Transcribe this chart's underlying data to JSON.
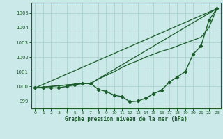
{
  "background_color": "#cce9e9",
  "grid_color": "#aad4cc",
  "line_color": "#1a5c2a",
  "title": "Graphe pression niveau de la mer (hPa)",
  "xlim": [
    -0.5,
    23.5
  ],
  "ylim": [
    998.5,
    1005.7
  ],
  "yticks": [
    999,
    1000,
    1001,
    1002,
    1003,
    1004,
    1005
  ],
  "xticks": [
    0,
    1,
    2,
    3,
    4,
    5,
    6,
    7,
    8,
    9,
    10,
    11,
    12,
    13,
    14,
    15,
    16,
    17,
    18,
    19,
    20,
    21,
    22,
    23
  ],
  "series_main": {
    "x": [
      0,
      1,
      2,
      3,
      4,
      5,
      6,
      7,
      8,
      9,
      10,
      11,
      12,
      13,
      14,
      15,
      16,
      17,
      18,
      19,
      20,
      21,
      22,
      23
    ],
    "y": [
      999.9,
      999.9,
      999.9,
      999.9,
      1000.0,
      1000.1,
      1000.2,
      1000.2,
      999.8,
      999.65,
      999.4,
      999.3,
      998.95,
      999.0,
      999.2,
      999.5,
      999.75,
      1000.3,
      1000.65,
      1001.0,
      1002.2,
      1002.75,
      1004.5,
      1005.3
    ],
    "marker": "D",
    "markersize": 2.2,
    "linewidth": 1.0
  },
  "series_straight": {
    "x": [
      0,
      23
    ],
    "y": [
      999.9,
      1005.3
    ],
    "linewidth": 0.9
  },
  "series_upper1": {
    "x": [
      0,
      6,
      7,
      23
    ],
    "y": [
      999.9,
      1000.2,
      1000.2,
      1005.3
    ],
    "linewidth": 0.9
  },
  "series_upper2": {
    "x": [
      0,
      6,
      7,
      8,
      9,
      10,
      11,
      12,
      13,
      14,
      15,
      16,
      17,
      18,
      19,
      20,
      21,
      22,
      23
    ],
    "y": [
      999.9,
      1000.2,
      1000.2,
      1000.5,
      1000.75,
      1001.0,
      1001.3,
      1001.55,
      1001.75,
      1002.0,
      1002.2,
      1002.4,
      1002.55,
      1002.75,
      1002.95,
      1003.15,
      1003.35,
      1004.0,
      1005.3
    ],
    "linewidth": 0.9
  }
}
